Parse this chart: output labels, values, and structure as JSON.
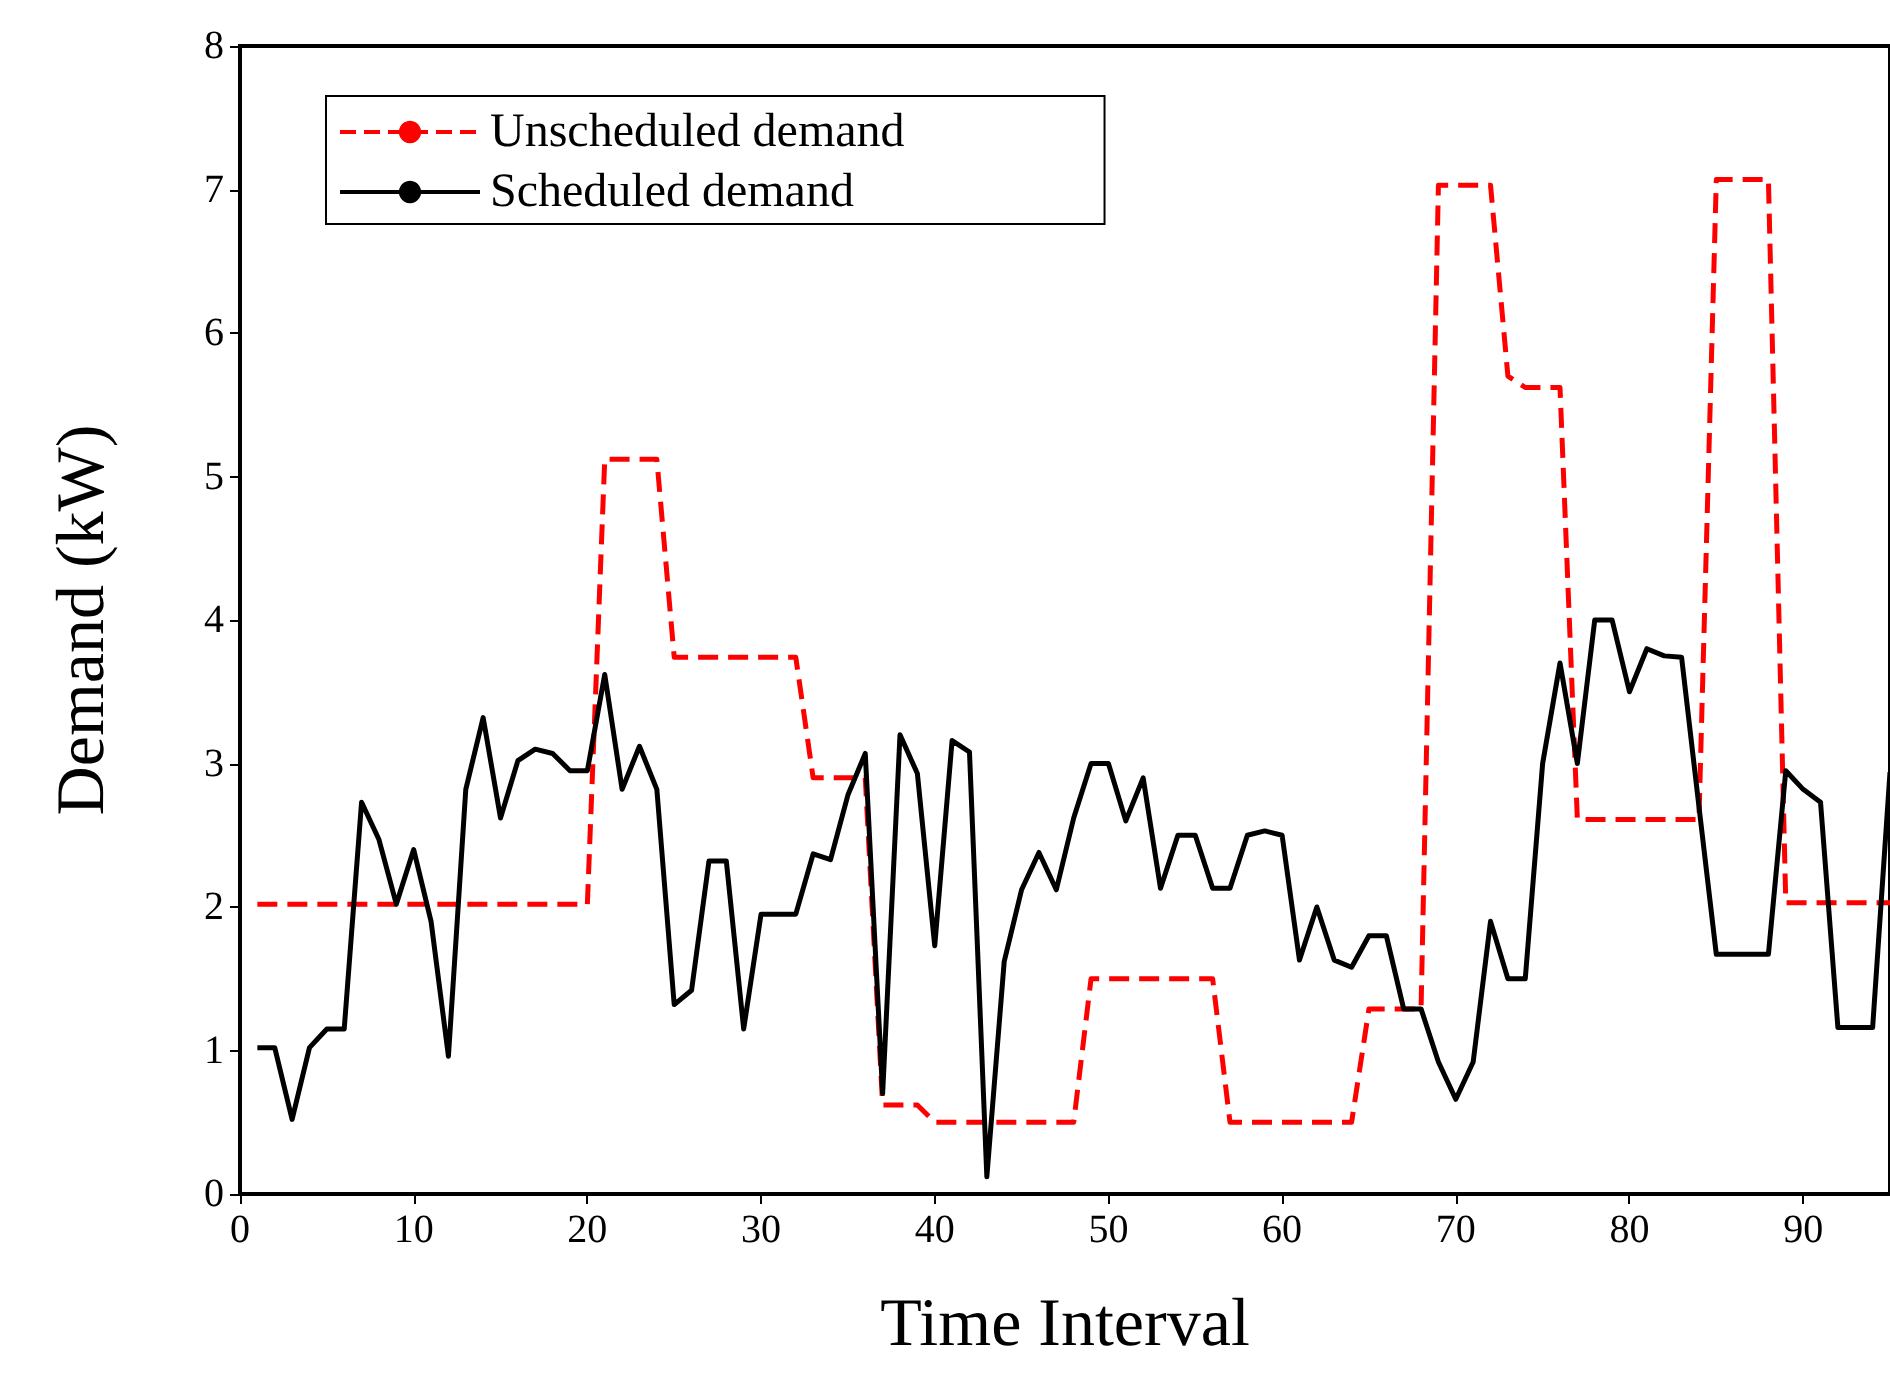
{
  "chart_data": {
    "type": "line",
    "xlabel": "Time Interval",
    "ylabel": "Demand (kW)",
    "x": [
      1,
      2,
      3,
      4,
      5,
      6,
      7,
      8,
      9,
      10,
      11,
      12,
      13,
      14,
      15,
      16,
      17,
      18,
      19,
      20,
      21,
      22,
      23,
      24,
      25,
      26,
      27,
      28,
      29,
      30,
      31,
      32,
      33,
      34,
      35,
      36,
      37,
      38,
      39,
      40,
      41,
      42,
      43,
      44,
      45,
      46,
      47,
      48,
      49,
      50,
      51,
      52,
      53,
      54,
      55,
      56,
      57,
      58,
      59,
      60,
      61,
      62,
      63,
      64,
      65,
      66,
      67,
      68,
      69,
      70,
      71,
      72,
      73,
      74,
      75,
      76,
      77,
      78,
      79,
      80,
      81,
      82,
      83,
      84,
      85,
      86,
      87,
      88,
      89,
      90,
      91,
      92,
      93,
      94,
      95
    ],
    "series": [
      {
        "name": "Unscheduled demand",
        "color": "#ff0000",
        "line_style": "dashed",
        "values": [
          2.02,
          2.02,
          2.02,
          2.02,
          2.02,
          2.02,
          2.02,
          2.02,
          2.02,
          2.02,
          2.02,
          2.02,
          2.02,
          2.02,
          2.02,
          2.02,
          2.02,
          2.02,
          2.02,
          2.02,
          5.12,
          5.12,
          5.12,
          5.12,
          3.74,
          3.74,
          3.74,
          3.74,
          3.74,
          3.74,
          3.74,
          3.74,
          2.9,
          2.9,
          2.9,
          2.9,
          0.62,
          0.62,
          0.62,
          0.5,
          0.5,
          0.5,
          0.5,
          0.5,
          0.5,
          0.5,
          0.5,
          0.5,
          1.5,
          1.5,
          1.5,
          1.5,
          1.5,
          1.5,
          1.5,
          1.5,
          0.5,
          0.5,
          0.5,
          0.5,
          0.5,
          0.5,
          0.5,
          0.5,
          1.29,
          1.29,
          1.29,
          1.29,
          7.03,
          7.03,
          7.03,
          7.03,
          5.7,
          5.62,
          5.62,
          5.62,
          2.61,
          2.61,
          2.61,
          2.61,
          2.61,
          2.61,
          2.61,
          2.61,
          7.07,
          7.07,
          7.07,
          7.07,
          2.03,
          2.03,
          2.03,
          2.03,
          2.03,
          2.03,
          2.03
        ]
      },
      {
        "name": "Scheduled demand",
        "color": "#000000",
        "line_style": "solid",
        "values": [
          1.02,
          1.02,
          0.52,
          1.02,
          1.15,
          1.15,
          2.73,
          2.47,
          2.02,
          2.4,
          1.9,
          0.96,
          2.82,
          3.32,
          2.62,
          3.02,
          3.1,
          3.07,
          2.95,
          2.95,
          3.62,
          2.82,
          3.12,
          2.82,
          1.32,
          1.42,
          2.32,
          2.32,
          1.15,
          1.95,
          1.95,
          1.95,
          2.37,
          2.33,
          2.78,
          3.07,
          0.7,
          3.2,
          2.93,
          1.73,
          3.16,
          3.08,
          0.12,
          1.62,
          2.12,
          2.38,
          2.12,
          2.62,
          3.0,
          3.0,
          2.6,
          2.9,
          2.13,
          2.5,
          2.5,
          2.13,
          2.13,
          2.5,
          2.53,
          2.5,
          1.63,
          2.0,
          1.63,
          1.58,
          1.8,
          1.8,
          1.29,
          1.29,
          0.92,
          0.66,
          0.92,
          1.9,
          1.5,
          1.5,
          3.0,
          3.7,
          3.0,
          4.0,
          4.0,
          3.5,
          3.8,
          3.75,
          3.74,
          2.7,
          1.67,
          1.67,
          1.67,
          1.67,
          2.95,
          2.82,
          2.73,
          1.16,
          1.16,
          1.16,
          2.94
        ]
      }
    ],
    "xlim": [
      0,
      95
    ],
    "xticks": [
      0,
      10,
      20,
      30,
      40,
      50,
      60,
      70,
      80,
      90
    ],
    "ylim": [
      0,
      8
    ],
    "yticks": [
      0,
      1,
      2,
      3,
      4,
      5,
      6,
      7,
      8
    ],
    "grid": false,
    "legend": "top left",
    "marker": "none"
  }
}
